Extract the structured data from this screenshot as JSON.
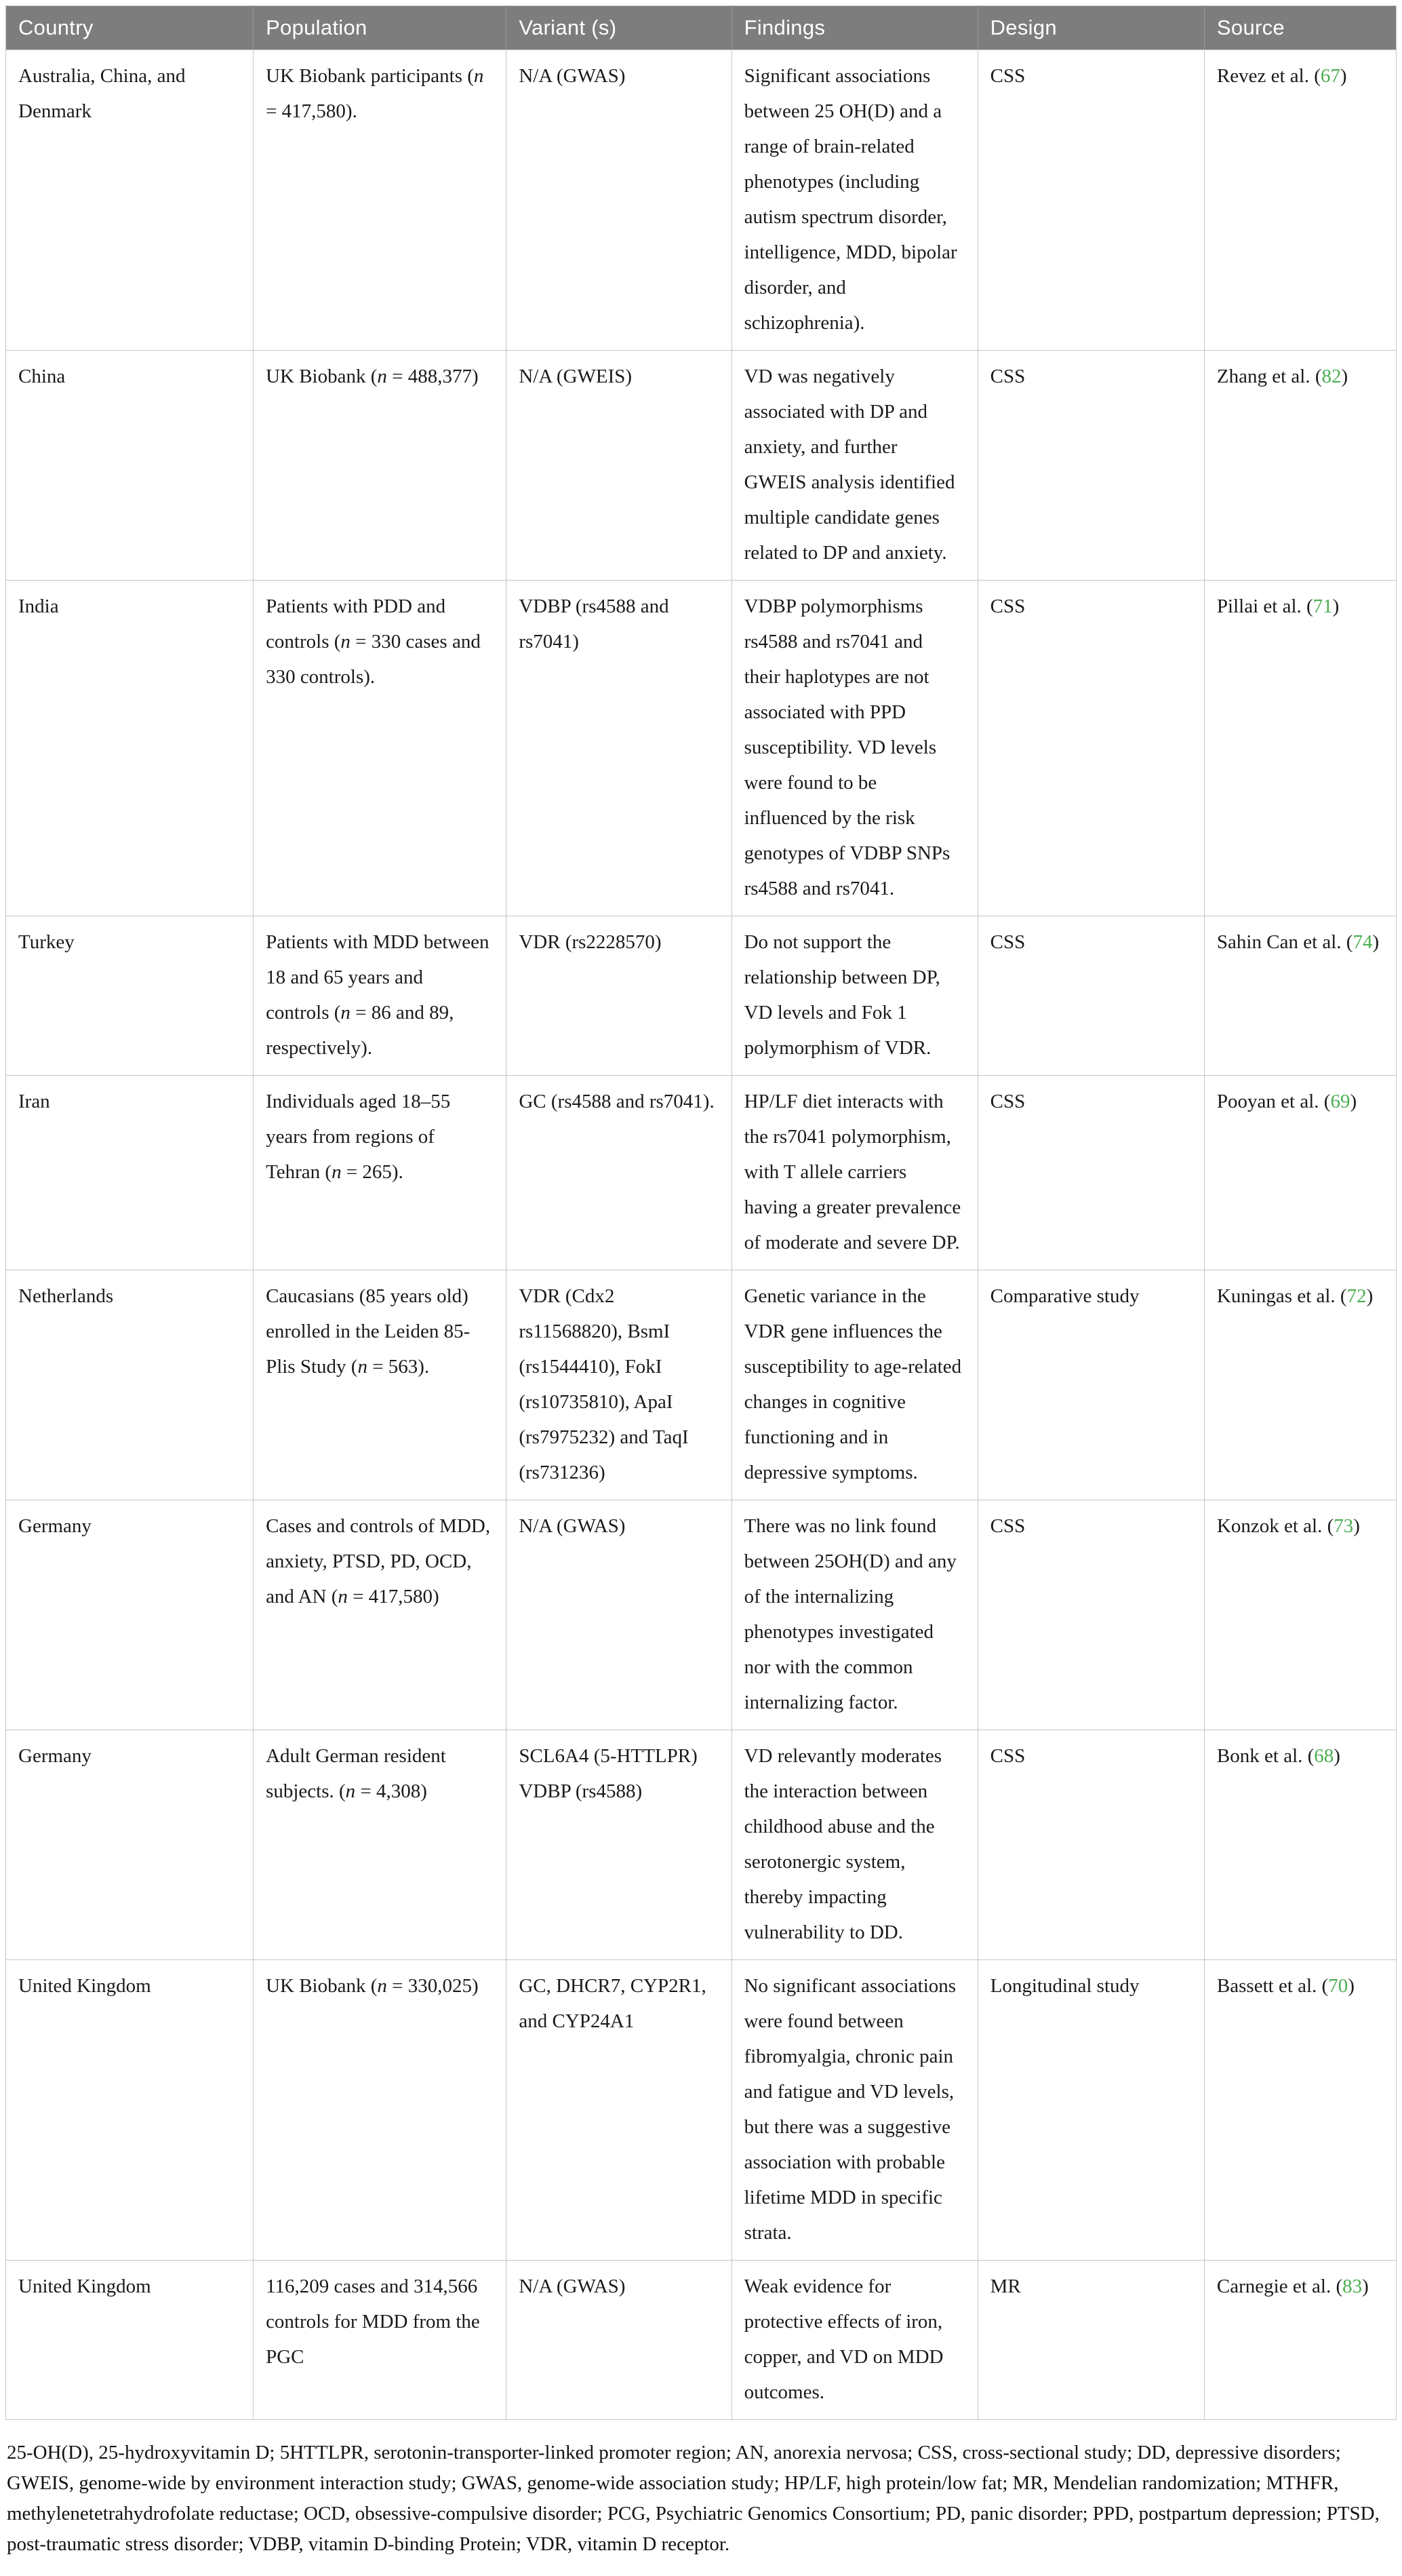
{
  "colors": {
    "header_bg": "#7d7d7d",
    "header_text": "#ffffff",
    "border": "#c6c6c6",
    "body_text": "#1a1a1a",
    "citation_green": "#4bae50"
  },
  "table": {
    "columns": [
      "Country",
      "Population",
      "Variant (s)",
      "Findings",
      "Design",
      "Source"
    ],
    "rows": [
      {
        "country": "Australia, China, and Denmark",
        "population_html": "UK Biobank participants (<i>n</i> = 417,580).",
        "variant": "N/A (GWAS)",
        "findings": "Significant associations between 25 OH(D) and a range of brain-related phenotypes (including autism spectrum disorder, intelligence, MDD, bipolar disorder, and schizophrenia).",
        "design": "CSS",
        "source_html": "Revez et al. (<a class='ref' data-name='citation-link' data-interactable='true'>67</a>)"
      },
      {
        "country": "China",
        "population_html": "UK Biobank (<i>n</i> = 488,377)",
        "variant": "N/A (GWEIS)",
        "findings": "VD was negatively associated with DP and anxiety, and further GWEIS analysis identified multiple candidate genes related to DP and anxiety.",
        "design": "CSS",
        "source_html": "Zhang et al. (<a class='ref' data-name='citation-link' data-interactable='true'>82</a>)"
      },
      {
        "country": "India",
        "population_html": "Patients with PDD and controls (<i>n</i> = 330 cases and 330 controls).",
        "variant": "VDBP (rs4588 and rs7041)",
        "findings": "VDBP polymorphisms rs4588 and rs7041 and their haplotypes are not associated with PPD susceptibility. VD levels were found to be influenced by the risk genotypes of VDBP SNPs rs4588 and rs7041.",
        "design": "CSS",
        "source_html": "Pillai et al. (<a class='ref' data-name='citation-link' data-interactable='true'>71</a>)"
      },
      {
        "country": "Turkey",
        "population_html": "Patients with MDD between 18 and 65 years and controls (<i>n</i> = 86 and 89, respectively).",
        "variant": "VDR (rs2228570)",
        "findings": "Do not support the relationship between DP, VD levels and Fok 1 polymorphism of VDR.",
        "design": "CSS",
        "source_html": "Sahin Can et al. (<a class='ref' data-name='citation-link' data-interactable='true'>74</a>)"
      },
      {
        "country": "Iran",
        "population_html": "Individuals aged 18–55 years from regions of Tehran (<i>n</i> = 265).",
        "variant": "GC (rs4588 and rs7041).",
        "findings": "HP/LF diet interacts with the rs7041 polymorphism, with T allele carriers having a greater prevalence of moderate and severe DP.",
        "design": "CSS",
        "source_html": "Pooyan et al. (<a class='ref' data-name='citation-link' data-interactable='true'>69</a>)"
      },
      {
        "country": "Netherlands",
        "population_html": "Caucasians (85 years old) enrolled in the Leiden 85-Plis Study (<i>n</i> = 563).",
        "variant": "VDR (Cdx2 rs11568820), BsmI (rs1544410), FokI (rs10735810), ApaI (rs7975232) and TaqI (rs731236)",
        "findings": "Genetic variance in the VDR gene influences the susceptibility to age-related changes in cognitive functioning and in depressive symptoms.",
        "design": "Comparative study",
        "source_html": "Kuningas et al. (<a class='ref' data-name='citation-link' data-interactable='true'>72</a>)"
      },
      {
        "country": "Germany",
        "population_html": "Cases and controls of MDD, anxiety, PTSD, PD, OCD, and AN (<i>n</i> = 417,580)",
        "variant": "N/A (GWAS)",
        "findings": "There was no link found between 25OH(D) and any of the internalizing phenotypes investigated nor with the common internalizing factor.",
        "design": "CSS",
        "source_html": "Konzok et al. (<a class='ref' data-name='citation-link' data-interactable='true'>73</a>)"
      },
      {
        "country": "Germany",
        "population_html": "Adult German resident subjects. (<i>n</i> = 4,308)",
        "variant": "SCL6A4 (5-HTTLPR) VDBP (rs4588)",
        "findings": "VD relevantly moderates the interaction between childhood abuse and the serotonergic system, thereby impacting vulnerability to DD.",
        "design": "CSS",
        "source_html": "Bonk et al. (<a class='ref' data-name='citation-link' data-interactable='true'>68</a>)"
      },
      {
        "country": "United Kingdom",
        "population_html": "UK Biobank (<i>n</i> = 330,025)",
        "variant": "GC, DHCR7, CYP2R1, and CYP24A1",
        "findings": "No significant associations were found between fibromyalgia, chronic pain and fatigue and VD levels, but there was a suggestive association with probable lifetime MDD in specific strata.",
        "design": "Longitudinal study",
        "source_html": "Bassett et al. (<a class='ref' data-name='citation-link' data-interactable='true'>70</a>)"
      },
      {
        "country": "United Kingdom",
        "population_html": "116,209 cases and 314,566 controls for MDD from the PGC",
        "variant": "N/A (GWAS)",
        "findings": "Weak evidence for protective effects of iron, copper, and VD on MDD outcomes.",
        "design": "MR",
        "source_html": "Carnegie et al. (<a class='ref' data-name='citation-link' data-interactable='true'>83</a>)"
      }
    ]
  },
  "footnote": "25-OH(D), 25-hydroxyvitamin D; 5HTTLPR, serotonin-transporter-linked promoter region; AN, anorexia nervosa; CSS, cross-sectional study; DD, depressive disorders; GWEIS, genome-wide by environment interaction study; GWAS, genome-wide association study; HP/LF, high protein/low fat; MR, Mendelian randomization; MTHFR, methylenetetrahydrofolate reductase; OCD, obsessive-compulsive disorder; PCG, Psychiatric Genomics Consortium; PD, panic disorder; PPD, postpartum depression; PTSD, post-traumatic stress disorder; VDBP, vitamin D-binding Protein; VDR, vitamin D receptor."
}
